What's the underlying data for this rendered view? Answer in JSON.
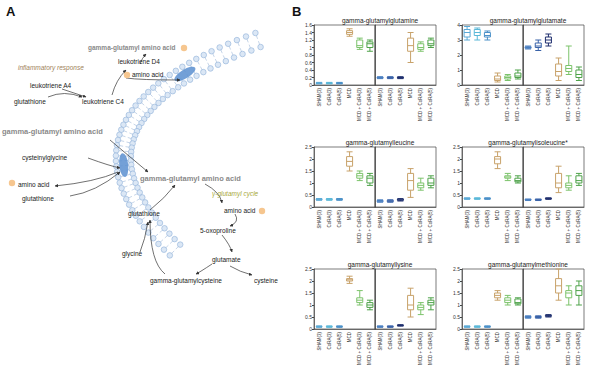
{
  "diagram": {
    "label": "A",
    "labels": [
      "inflammatory response",
      "leukotriene A4",
      "gamma-glutamyl amino acid",
      "leukotriene D4",
      "amino acid",
      "glutathione",
      "leukotriene C4",
      "gamma-glutamyl amino acid",
      "cysteinylglycine",
      "amino acid",
      "glutathione",
      "gamma-glutamyl amino acid",
      "γ-glutamyl cycle",
      "amino acid",
      "glutathione",
      "5-oxoproline",
      "glycine",
      "glutamate",
      "cysteine",
      "gamma-glutamylcysteine"
    ]
  },
  "panel_b": {
    "label": "B"
  },
  "chart_data": [
    {
      "type": "boxplot",
      "title": "gamma-glutamylglutamine",
      "ylim": [
        0,
        1.6
      ],
      "yticks": [
        0,
        0.2,
        0.4,
        0.6,
        0.8,
        1,
        1.2,
        1.4,
        1.6
      ],
      "groups": [
        {
          "categories": [
            "SHAM(3)",
            "CoRA(3)",
            "CoRA(5)",
            "MCD",
            "MCD + CoRA(3)",
            "MCD + CoRA(5)"
          ],
          "colors": [
            "#5aa9d6",
            "#5bb8d8",
            "#4a90c8",
            "#c8a26a",
            "#7cc36b",
            "#4fa34a"
          ],
          "boxes": [
            [
              0.03,
              0.04,
              0.05,
              0.06,
              0.07
            ],
            [
              0.03,
              0.04,
              0.05,
              0.06,
              0.07
            ],
            [
              0.03,
              0.04,
              0.05,
              0.06,
              0.07
            ],
            [
              1.3,
              1.35,
              1.4,
              1.45,
              1.5
            ],
            [
              0.95,
              1.0,
              1.05,
              1.2,
              1.25
            ],
            [
              0.9,
              1.0,
              1.1,
              1.15,
              1.2
            ]
          ]
        },
        {
          "categories": [
            "SHAM(3)",
            "CoRA(3)",
            "CoRA(5)",
            "MCD",
            "MCD + CoRA(3)",
            "MCD + CoRA(5)"
          ],
          "colors": [
            "#4a7fc0",
            "#3a63a8",
            "#1f2f6e",
            "#c8a26a",
            "#7cc36b",
            "#4fa34a"
          ],
          "boxes": [
            [
              0.17,
              0.18,
              0.2,
              0.21,
              0.22
            ],
            [
              0.17,
              0.18,
              0.2,
              0.21,
              0.22
            ],
            [
              0.17,
              0.18,
              0.2,
              0.21,
              0.22
            ],
            [
              0.6,
              0.9,
              1.05,
              1.25,
              1.4
            ],
            [
              0.9,
              0.95,
              1.0,
              1.1,
              1.15
            ],
            [
              1.0,
              1.05,
              1.1,
              1.2,
              1.25
            ]
          ]
        }
      ]
    },
    {
      "type": "boxplot",
      "title": "gamma-glutamylglutamate",
      "ylim": [
        0,
        4
      ],
      "yticks": [
        0,
        1,
        2,
        3,
        4
      ],
      "groups": [
        {
          "categories": [
            "SHAM(3)",
            "CoRA(3)",
            "CoRA(5)",
            "MCD",
            "MCD + CoRA(3)",
            "MCD + CoRA(5)"
          ],
          "colors": [
            "#5aa9d6",
            "#5bb8d8",
            "#4a90c8",
            "#c8a26a",
            "#7cc36b",
            "#4fa34a"
          ],
          "boxes": [
            [
              3.0,
              3.2,
              3.5,
              3.7,
              3.9
            ],
            [
              3.0,
              3.3,
              3.5,
              3.7,
              3.8
            ],
            [
              3.0,
              3.2,
              3.3,
              3.5,
              3.6
            ],
            [
              0.2,
              0.3,
              0.4,
              0.6,
              0.8
            ],
            [
              0.3,
              0.4,
              0.5,
              0.6,
              0.7
            ],
            [
              0.4,
              0.5,
              0.6,
              0.8,
              1.0
            ]
          ]
        },
        {
          "categories": [
            "SHAM(3)",
            "CoRA(3)",
            "CoRA(5)",
            "MCD",
            "MCD + CoRA(3)",
            "MCD + CoRA(5)"
          ],
          "colors": [
            "#4a7fc0",
            "#3a63a8",
            "#1f2f6e",
            "#c8a26a",
            "#7cc36b",
            "#4fa34a"
          ],
          "boxes": [
            [
              2.4,
              2.45,
              2.5,
              2.55,
              2.6
            ],
            [
              2.3,
              2.5,
              2.6,
              2.8,
              3.0
            ],
            [
              2.6,
              2.8,
              3.0,
              3.2,
              3.4
            ],
            [
              0.3,
              0.6,
              0.9,
              1.4,
              1.8
            ],
            [
              0.7,
              0.9,
              1.1,
              1.3,
              2.6
            ],
            [
              0.3,
              0.5,
              0.7,
              1.0,
              1.2
            ]
          ]
        }
      ]
    },
    {
      "type": "boxplot",
      "title": "gamma-glutamylleucine",
      "ylim": [
        0,
        2.5
      ],
      "yticks": [
        0,
        0.5,
        1,
        1.5,
        2,
        2.5
      ],
      "groups": [
        {
          "categories": [
            "SHAM(3)",
            "CoRA(3)",
            "CoRA(5)",
            "MCD",
            "MCD + CoRA(3)",
            "MCD + CoRA(5)"
          ],
          "colors": [
            "#5aa9d6",
            "#5bb8d8",
            "#4a90c8",
            "#c8a26a",
            "#7cc36b",
            "#4fa34a"
          ],
          "boxes": [
            [
              0.28,
              0.3,
              0.32,
              0.34,
              0.35
            ],
            [
              0.28,
              0.3,
              0.32,
              0.34,
              0.35
            ],
            [
              0.28,
              0.3,
              0.32,
              0.34,
              0.35
            ],
            [
              1.5,
              1.7,
              1.9,
              2.1,
              2.3
            ],
            [
              1.1,
              1.2,
              1.3,
              1.4,
              1.5
            ],
            [
              0.9,
              1.0,
              1.2,
              1.3,
              1.4
            ]
          ]
        },
        {
          "categories": [
            "SHAM(3)",
            "CoRA(3)",
            "CoRA(5)",
            "MCD",
            "MCD + CoRA(3)",
            "MCD + CoRA(5)"
          ],
          "colors": [
            "#4a7fc0",
            "#3a63a8",
            "#1f2f6e",
            "#c8a26a",
            "#7cc36b",
            "#4fa34a"
          ],
          "boxes": [
            [
              0.2,
              0.22,
              0.25,
              0.27,
              0.3
            ],
            [
              0.2,
              0.22,
              0.25,
              0.28,
              0.3
            ],
            [
              0.25,
              0.28,
              0.3,
              0.33,
              0.35
            ],
            [
              0.4,
              0.7,
              1.1,
              1.4,
              1.6
            ],
            [
              0.7,
              0.8,
              0.9,
              1.0,
              1.2
            ],
            [
              0.8,
              0.9,
              1.0,
              1.2,
              1.3
            ]
          ]
        }
      ]
    },
    {
      "type": "boxplot",
      "title": "gamma-glutamylisoleucine*",
      "ylim": [
        0,
        2.5
      ],
      "yticks": [
        0,
        0.5,
        1,
        1.5,
        2,
        2.5
      ],
      "groups": [
        {
          "categories": [
            "SHAM(3)",
            "CoRA(3)",
            "CoRA(5)",
            "MCD",
            "MCD + CoRA(3)",
            "MCD + CoRA(5)"
          ],
          "colors": [
            "#5aa9d6",
            "#5bb8d8",
            "#4a90c8",
            "#c8a26a",
            "#7cc36b",
            "#4fa34a"
          ],
          "boxes": [
            [
              0.32,
              0.34,
              0.35,
              0.37,
              0.38
            ],
            [
              0.32,
              0.34,
              0.35,
              0.37,
              0.38
            ],
            [
              0.32,
              0.34,
              0.35,
              0.37,
              0.38
            ],
            [
              1.6,
              1.8,
              2.0,
              2.1,
              2.3
            ],
            [
              1.1,
              1.2,
              1.25,
              1.3,
              1.4
            ],
            [
              1.0,
              1.05,
              1.1,
              1.2,
              1.3
            ]
          ]
        },
        {
          "categories": [
            "SHAM(3)",
            "CoRA(3)",
            "CoRA(5)",
            "MCD",
            "MCD + CoRA(3)",
            "MCD + CoRA(5)"
          ],
          "colors": [
            "#4a7fc0",
            "#3a63a8",
            "#1f2f6e",
            "#c8a26a",
            "#7cc36b",
            "#4fa34a"
          ],
          "boxes": [
            [
              0.27,
              0.29,
              0.3,
              0.32,
              0.33
            ],
            [
              0.27,
              0.29,
              0.3,
              0.32,
              0.33
            ],
            [
              0.32,
              0.34,
              0.35,
              0.37,
              0.38
            ],
            [
              0.6,
              0.8,
              1.0,
              1.4,
              1.7
            ],
            [
              0.7,
              0.8,
              0.9,
              1.0,
              1.3
            ],
            [
              0.9,
              1.0,
              1.1,
              1.3,
              1.4
            ]
          ]
        }
      ]
    },
    {
      "type": "boxplot",
      "title": "gamma-glutamyllysine",
      "ylim": [
        0,
        2.5
      ],
      "yticks": [
        0,
        0.5,
        1,
        1.5,
        2,
        2.5
      ],
      "groups": [
        {
          "categories": [
            "SHAM(3)",
            "CoRA(3)",
            "CoRA(5)",
            "MCD",
            "MCD + CoRA(3)",
            "MCD + CoRA(5)"
          ],
          "colors": [
            "#5aa9d6",
            "#5bb8d8",
            "#4a90c8",
            "#c8a26a",
            "#7cc36b",
            "#4fa34a"
          ],
          "boxes": [
            [
              0.07,
              0.09,
              0.1,
              0.11,
              0.13
            ],
            [
              0.07,
              0.09,
              0.1,
              0.11,
              0.13
            ],
            [
              0.07,
              0.09,
              0.1,
              0.11,
              0.13
            ],
            [
              1.9,
              2.0,
              2.05,
              2.1,
              2.2
            ],
            [
              1.0,
              1.1,
              1.2,
              1.3,
              1.6
            ],
            [
              0.8,
              0.9,
              1.0,
              1.1,
              1.2
            ]
          ]
        },
        {
          "categories": [
            "SHAM(3)",
            "CoRA(3)",
            "CoRA(5)",
            "MCD",
            "MCD + CoRA(3)",
            "MCD + CoRA(5)"
          ],
          "colors": [
            "#4a7fc0",
            "#3a63a8",
            "#1f2f6e",
            "#c8a26a",
            "#7cc36b",
            "#4fa34a"
          ],
          "boxes": [
            [
              0.07,
              0.09,
              0.1,
              0.11,
              0.13
            ],
            [
              0.07,
              0.09,
              0.1,
              0.11,
              0.13
            ],
            [
              0.12,
              0.14,
              0.15,
              0.16,
              0.18
            ],
            [
              0.5,
              0.8,
              1.0,
              1.4,
              1.7
            ],
            [
              0.6,
              0.8,
              0.9,
              1.0,
              1.1
            ],
            [
              0.8,
              1.0,
              1.1,
              1.2,
              1.3
            ]
          ]
        }
      ]
    },
    {
      "type": "boxplot",
      "title": "gamma-glutamylmethionine",
      "ylim": [
        0,
        2.5
      ],
      "yticks": [
        0,
        0.5,
        1,
        1.5,
        2,
        2.5
      ],
      "groups": [
        {
          "categories": [
            "SHAM(3)",
            "CoRA(3)",
            "CoRA(5)",
            "MCD",
            "MCD + CoRA(3)",
            "MCD + CoRA(5)"
          ],
          "colors": [
            "#5aa9d6",
            "#5bb8d8",
            "#4a90c8",
            "#c8a26a",
            "#7cc36b",
            "#4fa34a"
          ],
          "boxes": [
            [
              0.07,
              0.09,
              0.1,
              0.11,
              0.13
            ],
            [
              0.07,
              0.09,
              0.1,
              0.11,
              0.13
            ],
            [
              0.07,
              0.09,
              0.1,
              0.11,
              0.13
            ],
            [
              1.2,
              1.3,
              1.4,
              1.5,
              1.6
            ],
            [
              1.0,
              1.1,
              1.2,
              1.3,
              1.4
            ],
            [
              1.0,
              1.05,
              1.1,
              1.25,
              1.3
            ]
          ]
        },
        {
          "categories": [
            "SHAM(3)",
            "CoRA(3)",
            "CoRA(5)",
            "MCD",
            "MCD + CoRA(3)",
            "MCD + CoRA(5)"
          ],
          "colors": [
            "#4a7fc0",
            "#3a63a8",
            "#1f2f6e",
            "#c8a26a",
            "#7cc36b",
            "#4fa34a"
          ],
          "boxes": [
            [
              0.45,
              0.48,
              0.5,
              0.52,
              0.55
            ],
            [
              0.45,
              0.48,
              0.5,
              0.52,
              0.55
            ],
            [
              0.5,
              0.53,
              0.55,
              0.57,
              0.6
            ],
            [
              1.2,
              1.5,
              1.8,
              2.1,
              2.5
            ],
            [
              1.0,
              1.3,
              1.5,
              1.6,
              1.8
            ],
            [
              1.0,
              1.4,
              1.6,
              1.8,
              2.0
            ]
          ]
        }
      ]
    }
  ]
}
